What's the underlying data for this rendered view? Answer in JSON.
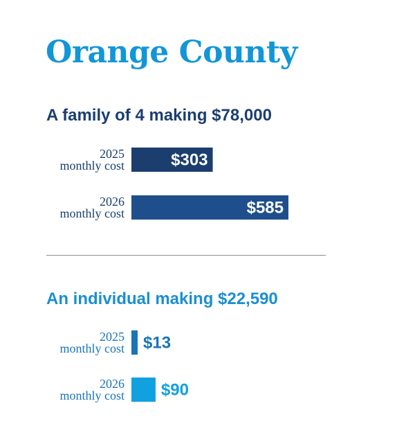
{
  "title": "Orange County",
  "chart_data": [
    {
      "type": "bar",
      "title": "A family of 4 making $78,000",
      "categories": [
        "2025 monthly cost",
        "2026 monthly cost"
      ],
      "values": [
        303,
        585
      ],
      "value_labels": [
        "$303",
        "$585"
      ],
      "colors": [
        "#1b3e6f",
        "#1e4f8c"
      ],
      "label_text_color": "#1b3e6f",
      "value_label_position": "inside",
      "grid": false,
      "legend": false
    },
    {
      "type": "bar",
      "title": "An individual making $22,590",
      "categories": [
        "2025 monthly cost",
        "2026 monthly cost"
      ],
      "values": [
        13,
        90
      ],
      "value_labels": [
        "$13",
        "$90"
      ],
      "colors": [
        "#1a74b8",
        "#12a1e0"
      ],
      "label_text_color": "#1a74b8",
      "value_label_position": "outside",
      "grid": false,
      "legend": false
    }
  ],
  "rows": {
    "family_2025": {
      "year": "2025",
      "caption": "monthly cost"
    },
    "family_2026": {
      "year": "2026",
      "caption": "monthly cost"
    },
    "individual_2025": {
      "year": "2025",
      "caption": "monthly cost"
    },
    "individual_2026": {
      "year": "2026",
      "caption": "monthly cost"
    }
  }
}
